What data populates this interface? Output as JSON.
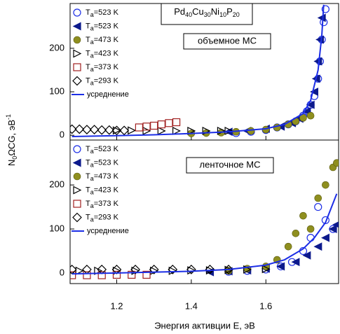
{
  "chart_data": [
    {
      "type": "scatter",
      "title": "Pd40Cu30Ni10P20",
      "annotation": "объемное МС",
      "ylabel": "N0ΩCG, эВ-1",
      "xlim": [
        1.075,
        1.795
      ],
      "ylim": [
        -11,
        303
      ],
      "yticks": [
        0,
        100,
        200
      ],
      "series": [
        {
          "name": "Ta=523 K",
          "marker": "circle",
          "color": "#1c2ee6",
          "x": [
            1.52,
            1.56,
            1.6,
            1.63,
            1.66,
            1.68,
            1.7,
            1.71,
            1.72,
            1.73,
            1.74,
            1.745,
            1.75,
            1.755,
            1.76
          ],
          "values": [
            5,
            8,
            12,
            18,
            25,
            32,
            45,
            55,
            70,
            90,
            130,
            170,
            220,
            260,
            290
          ]
        },
        {
          "name": "Ta=523 K",
          "marker": "triangle-left",
          "color": "#0d1a8c",
          "x": [
            1.5,
            1.55,
            1.6,
            1.64,
            1.67,
            1.69,
            1.71,
            1.72,
            1.73,
            1.735,
            1.74,
            1.745,
            1.75
          ],
          "values": [
            8,
            10,
            15,
            20,
            28,
            38,
            55,
            70,
            100,
            130,
            170,
            220,
            270
          ]
        },
        {
          "name": "Ta=473 K",
          "marker": "ball",
          "color": "#8f8f1f",
          "x": [
            1.4,
            1.44,
            1.48,
            1.52,
            1.56,
            1.6,
            1.63,
            1.66,
            1.68,
            1.7,
            1.72
          ],
          "values": [
            4,
            5,
            6,
            8,
            10,
            13,
            18,
            25,
            32,
            40,
            45
          ]
        },
        {
          "name": "Ta=423 K",
          "marker": "triangle-right",
          "color": "#000000",
          "x": [
            1.2,
            1.24,
            1.28,
            1.32,
            1.36,
            1.4,
            1.44,
            1.48,
            1.5
          ],
          "values": [
            11,
            11,
            10,
            10,
            10,
            10,
            10,
            10,
            10
          ]
        },
        {
          "name": "Ta=373 K",
          "marker": "square",
          "color": "#a02020",
          "x": [
            1.26,
            1.28,
            1.3,
            1.32,
            1.34,
            1.36
          ],
          "values": [
            18,
            20,
            22,
            25,
            28,
            30
          ]
        },
        {
          "name": "Ta=293 K",
          "marker": "diamond",
          "color": "#000000",
          "x": [
            1.08,
            1.1,
            1.12,
            1.14,
            1.16,
            1.18,
            1.2,
            1.22
          ],
          "values": [
            14,
            14,
            13,
            13,
            12,
            12,
            11,
            11
          ]
        },
        {
          "name": "усреднение",
          "marker": "line",
          "color": "#1c2ee6",
          "x": [
            1.08,
            1.2,
            1.3,
            1.4,
            1.5,
            1.6,
            1.65,
            1.7,
            1.72,
            1.74,
            1.75,
            1.755
          ],
          "values": [
            -3,
            -1,
            1,
            4,
            8,
            15,
            25,
            50,
            80,
            150,
            230,
            300
          ]
        }
      ]
    },
    {
      "type": "scatter",
      "annotation": "ленточное МС",
      "xlabel": "Энергия активции E, эВ",
      "xlim": [
        1.075,
        1.795
      ],
      "ylim": [
        -24,
        302
      ],
      "yticks": [
        0,
        100,
        200
      ],
      "xticks": [
        1.2,
        1.4,
        1.6
      ],
      "series": [
        {
          "name": "Ta=523 K",
          "marker": "circle",
          "color": "#1c2ee6",
          "x": [
            1.5,
            1.55,
            1.6,
            1.64,
            1.67,
            1.7,
            1.72,
            1.74,
            1.76,
            1.78
          ],
          "values": [
            3,
            5,
            8,
            15,
            25,
            50,
            80,
            150,
            120,
            100
          ]
        },
        {
          "name": "Ta=523 K",
          "marker": "triangle-left",
          "color": "#0d1a8c",
          "x": [
            1.45,
            1.5,
            1.55,
            1.6,
            1.64,
            1.68,
            1.71,
            1.74,
            1.76,
            1.78,
            1.79
          ],
          "values": [
            2,
            4,
            6,
            10,
            15,
            25,
            40,
            60,
            80,
            100,
            110
          ]
        },
        {
          "name": "Ta=473 K",
          "marker": "ball",
          "color": "#8f8f1f",
          "x": [
            1.5,
            1.55,
            1.6,
            1.63,
            1.66,
            1.68,
            1.7,
            1.72,
            1.74,
            1.76,
            1.78,
            1.79
          ],
          "values": [
            5,
            10,
            15,
            30,
            60,
            90,
            130,
            100,
            170,
            200,
            240,
            250
          ]
        },
        {
          "name": "Ta=423 K",
          "marker": "triangle-right",
          "color": "#000000",
          "x": [
            1.1,
            1.15,
            1.2,
            1.25,
            1.3,
            1.35,
            1.4,
            1.45,
            1.5,
            1.55,
            1.6
          ],
          "values": [
            5,
            5,
            5,
            5,
            5,
            5,
            6,
            6,
            7,
            8,
            9
          ]
        },
        {
          "name": "Ta=373 K",
          "marker": "square",
          "color": "#a02020",
          "x": [
            1.08,
            1.12,
            1.16,
            1.2,
            1.24,
            1.28
          ],
          "values": [
            -5,
            -5,
            -5,
            -4,
            -4,
            -4
          ]
        },
        {
          "name": "Ta=293 K",
          "marker": "diamond",
          "color": "#000000",
          "x": [
            1.08,
            1.12,
            1.16,
            1.2,
            1.25,
            1.3,
            1.35,
            1.4,
            1.45,
            1.5
          ],
          "values": [
            8,
            8,
            8,
            8,
            8,
            8,
            8,
            8,
            8,
            8
          ]
        },
        {
          "name": "усреднение",
          "marker": "line",
          "color": "#1c2ee6",
          "x": [
            1.08,
            1.2,
            1.3,
            1.4,
            1.5,
            1.6,
            1.65,
            1.7,
            1.73,
            1.76,
            1.79
          ],
          "values": [
            -2,
            0,
            2,
            4,
            8,
            18,
            30,
            55,
            80,
            115,
            180
          ]
        }
      ]
    }
  ]
}
